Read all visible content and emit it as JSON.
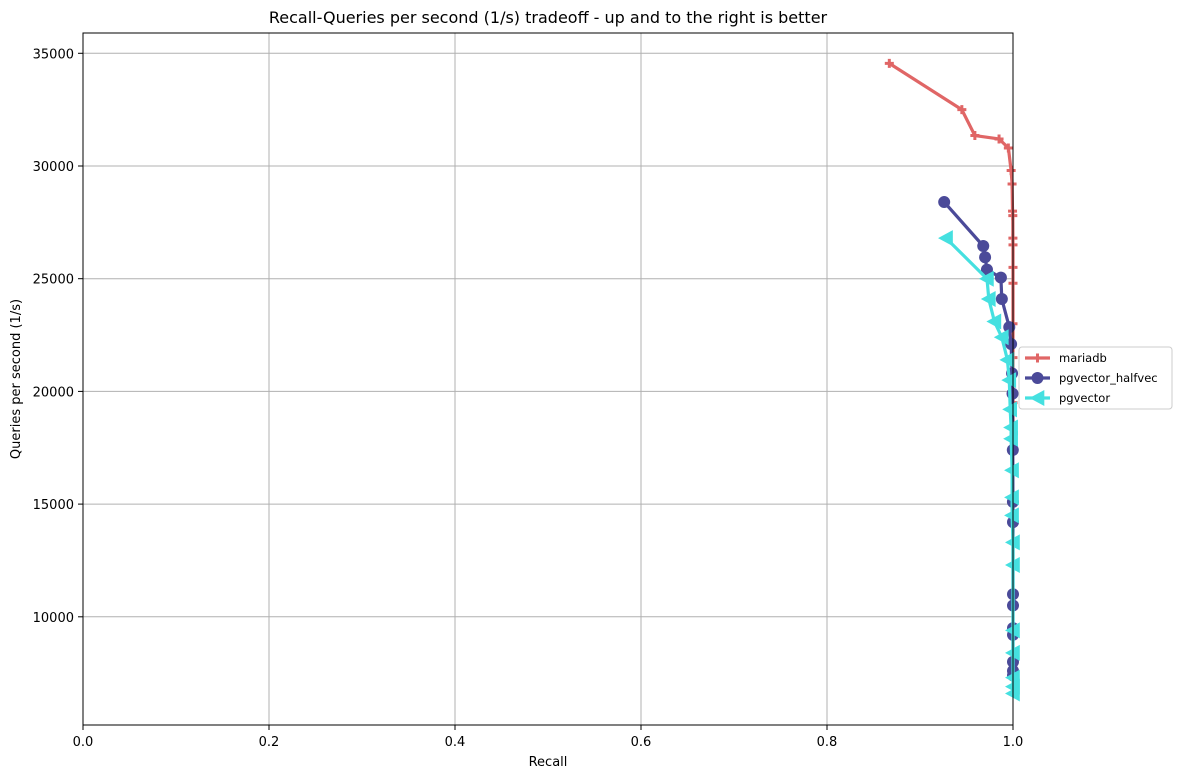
{
  "chart_data": {
    "type": "line",
    "title": "Recall-Queries per second (1/s) tradeoff - up and to the right is better",
    "xlabel": "Recall",
    "ylabel": "Queries per second (1/s)",
    "xlim": [
      0.0,
      1.0
    ],
    "ylim": [
      5200,
      35900
    ],
    "x_ticks": [
      0.0,
      0.2,
      0.4,
      0.6,
      0.8,
      1.0
    ],
    "x_tick_labels": [
      "0.0",
      "0.2",
      "0.4",
      "0.6",
      "0.8",
      "1.0"
    ],
    "y_ticks": [
      10000,
      15000,
      20000,
      25000,
      30000,
      35000
    ],
    "y_tick_labels": [
      "10000",
      "15000",
      "20000",
      "25000",
      "30000",
      "35000"
    ],
    "grid": true,
    "legend_position": "outside right, centered",
    "series": [
      {
        "name": "mariadb",
        "color": "#e06666",
        "marker": "plus",
        "x": [
          0.867,
          0.945,
          0.959,
          0.985,
          0.995,
          0.998,
          0.999,
          0.9995,
          0.9998,
          0.9999,
          1.0,
          1.0,
          1.0,
          1.0,
          1.0,
          1.0,
          1.0
        ],
        "y": [
          34550,
          32500,
          31350,
          31200,
          30800,
          29800,
          29200,
          28000,
          27800,
          26800,
          26500,
          25500,
          24800,
          23000,
          21500,
          19500,
          17500
        ]
      },
      {
        "name": "pgvector_halfvec",
        "color": "#4b4a99",
        "marker": "circle",
        "x": [
          0.926,
          0.968,
          0.97,
          0.972,
          0.987,
          0.988,
          0.996,
          0.998,
          0.999,
          0.9995,
          0.9998,
          0.9999,
          1.0,
          1.0,
          1.0,
          1.0,
          1.0,
          1.0,
          1.0,
          1.0
        ],
        "y": [
          28400,
          26450,
          25950,
          25400,
          25050,
          24100,
          22850,
          22100,
          20800,
          19900,
          17400,
          15100,
          14200,
          11000,
          10500,
          9500,
          9200,
          8000,
          7600,
          7400
        ]
      },
      {
        "name": "pgvector",
        "color": "#45e0e0",
        "marker": "triangle-left",
        "x": [
          0.928,
          0.972,
          0.974,
          0.98,
          0.988,
          0.994,
          0.996,
          0.997,
          0.998,
          0.998,
          0.999,
          0.999,
          0.999,
          1.0,
          1.0,
          1.0,
          1.0,
          1.0,
          1.0,
          1.0
        ],
        "y": [
          26800,
          25000,
          24100,
          23100,
          22400,
          21400,
          20500,
          19200,
          18400,
          17900,
          16500,
          15300,
          14500,
          13300,
          12300,
          9400,
          8400,
          7300,
          6900,
          6600
        ]
      }
    ]
  }
}
